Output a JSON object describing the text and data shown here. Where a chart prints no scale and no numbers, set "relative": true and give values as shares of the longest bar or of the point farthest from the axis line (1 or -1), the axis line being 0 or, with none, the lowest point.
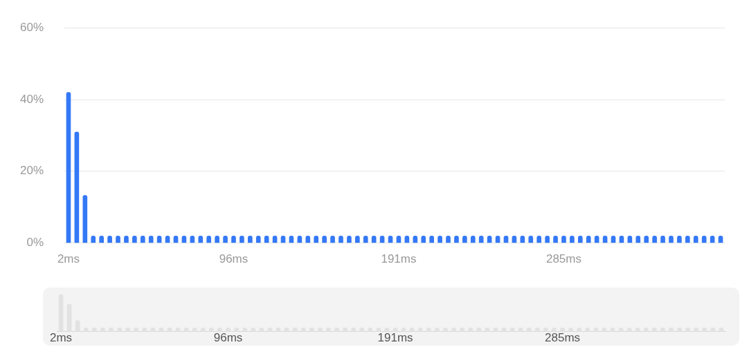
{
  "chart_data": [
    {
      "type": "bar",
      "categories": [
        "2ms",
        null,
        null,
        null,
        null,
        null,
        null,
        null,
        null,
        null,
        null,
        null,
        null,
        null,
        null,
        null,
        null,
        null,
        null,
        null,
        "96ms",
        null,
        null,
        null,
        null,
        null,
        null,
        null,
        null,
        null,
        null,
        null,
        null,
        null,
        null,
        null,
        null,
        null,
        null,
        null,
        "191ms",
        null,
        null,
        null,
        null,
        null,
        null,
        null,
        null,
        null,
        null,
        null,
        null,
        null,
        null,
        null,
        null,
        null,
        null,
        null,
        "285ms",
        null,
        null,
        null,
        null,
        null,
        null,
        null,
        null,
        null,
        null,
        null,
        null,
        null,
        null,
        null,
        null,
        null,
        null,
        null
      ],
      "values": [
        42,
        31,
        13.3,
        2,
        2,
        2,
        2,
        2,
        2,
        2,
        2,
        2,
        2,
        2,
        2,
        2,
        2,
        2,
        2,
        2,
        2,
        2,
        2,
        2,
        2,
        2,
        2,
        2,
        2,
        2,
        2,
        2,
        2,
        2,
        2,
        2,
        2,
        2,
        2,
        2,
        2,
        2,
        2,
        2,
        2,
        2,
        2,
        2,
        2,
        2,
        2,
        2,
        2,
        2,
        2,
        2,
        2,
        2,
        2,
        2,
        2,
        2,
        2,
        2,
        2,
        2,
        2,
        2,
        2,
        2,
        2,
        2,
        2,
        2,
        2,
        2,
        2,
        2,
        2,
        2
      ],
      "color": "#3478f6",
      "ylim": [
        0,
        60
      ],
      "yticks": [
        {
          "value": 0,
          "label": "0%"
        },
        {
          "value": 20,
          "label": "20%"
        },
        {
          "value": 40,
          "label": "40%"
        },
        {
          "value": 60,
          "label": "60%"
        }
      ],
      "grid": "y"
    },
    {
      "type": "bar",
      "categories": [
        "2ms",
        null,
        null,
        null,
        null,
        null,
        null,
        null,
        null,
        null,
        null,
        null,
        null,
        null,
        null,
        null,
        null,
        null,
        null,
        null,
        "96ms",
        null,
        null,
        null,
        null,
        null,
        null,
        null,
        null,
        null,
        null,
        null,
        null,
        null,
        null,
        null,
        null,
        null,
        null,
        null,
        "191ms",
        null,
        null,
        null,
        null,
        null,
        null,
        null,
        null,
        null,
        null,
        null,
        null,
        null,
        null,
        null,
        null,
        null,
        null,
        null,
        "285ms",
        null,
        null,
        null,
        null,
        null,
        null,
        null,
        null,
        null,
        null,
        null,
        null,
        null,
        null,
        null,
        null,
        null,
        null,
        null
      ],
      "values": [
        1,
        0.74,
        0.3,
        0.1,
        0.1,
        0.1,
        0.1,
        0.1,
        0.1,
        0.1,
        0.1,
        0.1,
        0.1,
        0.1,
        0.1,
        0.1,
        0.1,
        0.1,
        0.1,
        0.1,
        0.1,
        0.1,
        0.1,
        0.1,
        0.1,
        0.1,
        0.1,
        0.1,
        0.1,
        0.1,
        0.1,
        0.1,
        0.1,
        0.1,
        0.1,
        0.1,
        0.1,
        0.1,
        0.1,
        0.1,
        0.1,
        0.1,
        0.1,
        0.1,
        0.1,
        0.1,
        0.1,
        0.1,
        0.1,
        0.1,
        0.1,
        0.1,
        0.1,
        0.1,
        0.1,
        0.1,
        0.1,
        0.1,
        0.1,
        0.1,
        0.1,
        0.1,
        0.1,
        0.1,
        0.1,
        0.1,
        0.1,
        0.1,
        0.1,
        0.1,
        0.1,
        0.1,
        0.1,
        0.1,
        0.1,
        0.1,
        0.1,
        0.1,
        0.1,
        0.1
      ],
      "color": "#e2e2e2",
      "relative": true,
      "tick_labels": "x"
    }
  ]
}
